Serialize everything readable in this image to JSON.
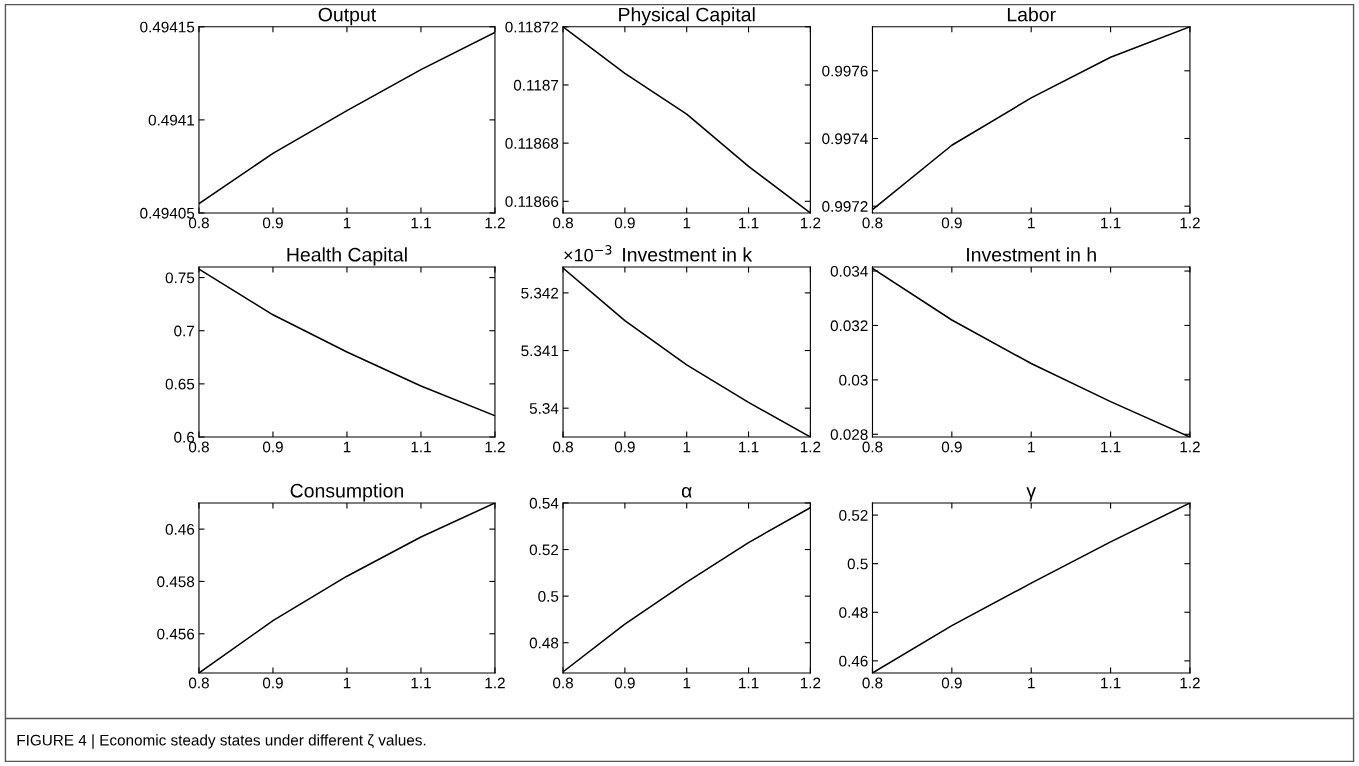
{
  "chart_data": [
    {
      "type": "line",
      "title": "Output",
      "x": [
        0.8,
        0.9,
        1,
        1.1,
        1.2
      ],
      "values": [
        0.494055,
        0.494082,
        0.494105,
        0.494127,
        0.494147
      ],
      "color": "#000000",
      "xlim": [
        0.8,
        1.2
      ],
      "xticks": [
        0.8,
        0.9,
        1,
        1.1,
        1.2
      ],
      "ylim": [
        0.49405,
        0.49415
      ],
      "yticks": [
        0.49405,
        0.4941,
        0.49415
      ],
      "grid": false
    },
    {
      "type": "line",
      "title": "Physical Capital",
      "x": [
        0.8,
        0.9,
        1,
        1.1,
        1.2
      ],
      "values": [
        0.11872,
        0.118704,
        0.11869,
        0.118672,
        0.118656
      ],
      "color": "#000000",
      "xlim": [
        0.8,
        1.2
      ],
      "xticks": [
        0.8,
        0.9,
        1,
        1.1,
        1.2
      ],
      "ylim": [
        0.118656,
        0.11872
      ],
      "yticks": [
        0.11866,
        0.11868,
        0.1187,
        0.11872
      ],
      "grid": false
    },
    {
      "type": "line",
      "title": "Labor",
      "x": [
        0.8,
        0.9,
        1,
        1.1,
        1.2
      ],
      "values": [
        0.99719,
        0.99738,
        0.99752,
        0.99764,
        0.99773
      ],
      "color": "#000000",
      "xlim": [
        0.8,
        1.2
      ],
      "xticks": [
        0.8,
        0.9,
        1,
        1.1,
        1.2
      ],
      "ylim": [
        0.99718,
        0.99773
      ],
      "yticks": [
        0.9972,
        0.9974,
        0.9976
      ],
      "grid": false
    },
    {
      "type": "line",
      "title": "Health Capital",
      "x": [
        0.8,
        0.9,
        1,
        1.1,
        1.2
      ],
      "values": [
        0.758,
        0.715,
        0.68,
        0.648,
        0.62
      ],
      "color": "#000000",
      "xlim": [
        0.8,
        1.2
      ],
      "xticks": [
        0.8,
        0.9,
        1,
        1.1,
        1.2
      ],
      "ylim": [
        0.6,
        0.76
      ],
      "yticks": [
        0.6,
        0.65,
        0.7,
        0.75
      ],
      "grid": false
    },
    {
      "type": "line",
      "title": "Investment in k",
      "x": [
        0.8,
        0.9,
        1,
        1.1,
        1.2
      ],
      "values": [
        5.34243,
        5.34152,
        5.34075,
        5.3401,
        5.3395
      ],
      "color": "#000000",
      "xlim": [
        0.8,
        1.2
      ],
      "xticks": [
        0.8,
        0.9,
        1,
        1.1,
        1.2
      ],
      "ylim": [
        5.3395,
        5.34245
      ],
      "yticks": [
        5.34,
        5.341,
        5.342
      ],
      "grid": false,
      "annotations": [
        "×10$^{−3}$"
      ]
    },
    {
      "type": "line",
      "title": "Investment in h",
      "x": [
        0.8,
        0.9,
        1,
        1.1,
        1.2
      ],
      "values": [
        0.0341,
        0.0322,
        0.0306,
        0.0292,
        0.0279
      ],
      "color": "#000000",
      "xlim": [
        0.8,
        1.2
      ],
      "xticks": [
        0.8,
        0.9,
        1,
        1.1,
        1.2
      ],
      "ylim": [
        0.0279,
        0.03415
      ],
      "yticks": [
        0.028,
        0.03,
        0.032,
        0.034
      ],
      "grid": false
    },
    {
      "type": "line",
      "title": "Consumption",
      "x": [
        0.8,
        0.9,
        1,
        1.1,
        1.2
      ],
      "values": [
        0.4545,
        0.4565,
        0.4582,
        0.4597,
        0.461
      ],
      "color": "#000000",
      "xlim": [
        0.8,
        1.2
      ],
      "xticks": [
        0.8,
        0.9,
        1,
        1.1,
        1.2
      ],
      "ylim": [
        0.4545,
        0.461
      ],
      "yticks": [
        0.456,
        0.458,
        0.46
      ],
      "grid": false
    },
    {
      "type": "line",
      "title": "α",
      "x": [
        0.8,
        0.9,
        1,
        1.1,
        1.2
      ],
      "values": [
        0.4675,
        0.488,
        0.506,
        0.523,
        0.538
      ],
      "color": "#000000",
      "xlim": [
        0.8,
        1.2
      ],
      "xticks": [
        0.8,
        0.9,
        1,
        1.1,
        1.2
      ],
      "ylim": [
        0.467,
        0.54
      ],
      "yticks": [
        0.48,
        0.5,
        0.52,
        0.54
      ],
      "grid": false
    },
    {
      "type": "line",
      "title": "γ",
      "x": [
        0.8,
        0.9,
        1,
        1.1,
        1.2
      ],
      "values": [
        0.455,
        0.4745,
        0.492,
        0.509,
        0.525
      ],
      "color": "#000000",
      "xlim": [
        0.8,
        1.2
      ],
      "xticks": [
        0.8,
        0.9,
        1,
        1.1,
        1.2
      ],
      "ylim": [
        0.455,
        0.525
      ],
      "yticks": [
        0.46,
        0.48,
        0.5,
        0.52
      ],
      "grid": false,
      "annotations": [
        "FIGURE 4 | Economic steady states under different ζ values."
      ]
    }
  ]
}
